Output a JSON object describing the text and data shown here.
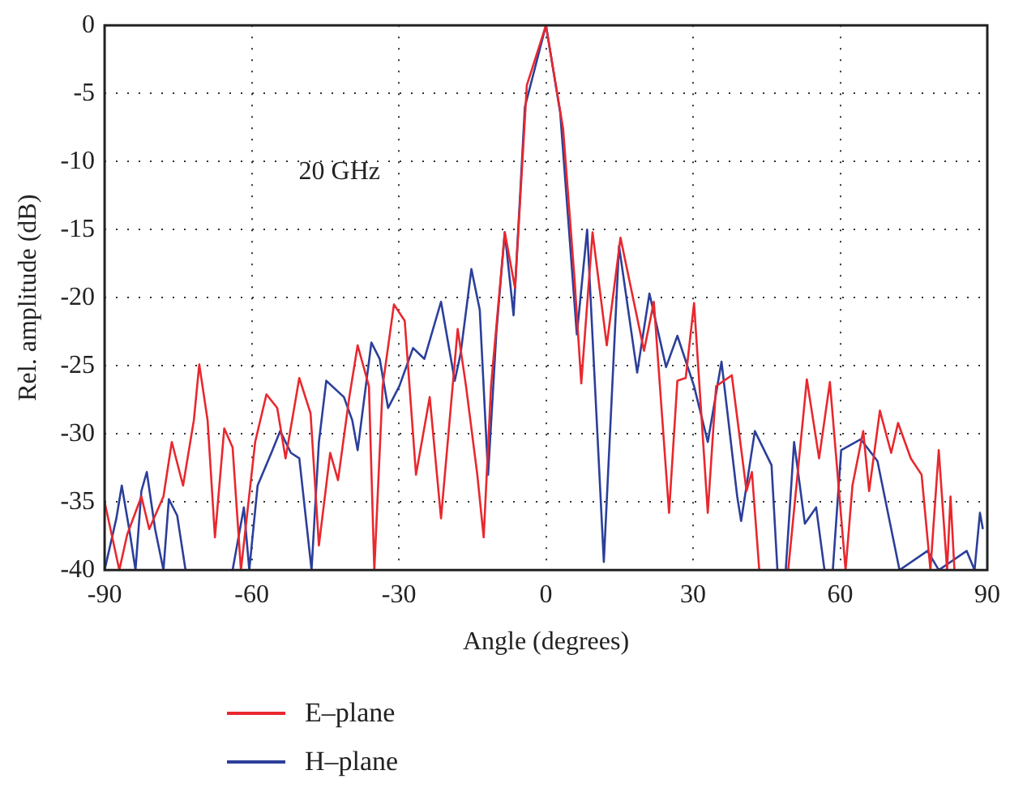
{
  "chart_data": {
    "type": "line",
    "xlabel": "Angle (degrees)",
    "ylabel": "Rel. amplitude (dB)",
    "annotations": [
      "20 GHz"
    ],
    "xlim": [
      -90,
      90
    ],
    "xticks": [
      -90,
      -60,
      -30,
      0,
      30,
      60,
      90
    ],
    "ylim": [
      -40,
      0
    ],
    "yticks": [
      -40,
      -35,
      -30,
      -25,
      -20,
      -15,
      -10,
      -5,
      0
    ],
    "grid": true,
    "legend": "bottom",
    "marker": "none",
    "line_style": "solid",
    "series": [
      {
        "name": "E–plane",
        "color": "#e8282e",
        "x": [
          -90,
          -87,
          -85.4,
          -82.5,
          -80.9,
          -78,
          -76.3,
          -74,
          -71.8,
          -70.7,
          -69,
          -67.5,
          -65.6,
          -63.9,
          -62.2,
          -59.3,
          -57,
          -54.8,
          -53.1,
          -50.3,
          -48,
          -46.3,
          -44,
          -42.4,
          -40.1,
          -38.4,
          -36.1,
          -35,
          -33.3,
          -31,
          -28.8,
          -26.5,
          -23.7,
          -21.4,
          -18,
          -16.3,
          -14,
          -12.7,
          -11.2,
          -8.4,
          -6.3,
          -3.9,
          0,
          3.5,
          5.8,
          7.2,
          9.5,
          12.4,
          15.2,
          20,
          22,
          25.1,
          26.8,
          28.5,
          30.2,
          33,
          34.7,
          37.9,
          40.9,
          42,
          43.5,
          49.4,
          53.2,
          55.7,
          57.9,
          61.1,
          62.5,
          64.7,
          65.9,
          68.1,
          70.4,
          71.8,
          74.4,
          76.6,
          78.4,
          80.1,
          81.8,
          82.5,
          83.3
        ],
        "values": [
          -35,
          -40,
          -37.4,
          -34.6,
          -37,
          -34.6,
          -30.6,
          -33.8,
          -29,
          -24.9,
          -29,
          -37.6,
          -29.6,
          -31,
          -40,
          -30.6,
          -27.1,
          -28.1,
          -31.8,
          -25.9,
          -28.5,
          -38.2,
          -31.4,
          -33.4,
          -27.3,
          -23.5,
          -26.5,
          -40,
          -26.5,
          -20.5,
          -21.7,
          -33,
          -27.3,
          -36.2,
          -22.3,
          -26.5,
          -33,
          -37.6,
          -26.5,
          -15.2,
          -19.3,
          -4.4,
          0,
          -7.6,
          -18.5,
          -26.3,
          -15.2,
          -23.5,
          -15.6,
          -23.9,
          -20.3,
          -35.8,
          -26.1,
          -25.9,
          -20.4,
          -35.8,
          -26.5,
          -25.7,
          -34.2,
          -32.8,
          -40,
          -40,
          -26,
          -31.8,
          -26.2,
          -40,
          -33.8,
          -29.8,
          -34.2,
          -28.3,
          -31.4,
          -29.2,
          -31.8,
          -33,
          -40,
          -31.2,
          -40,
          -34.6,
          -40
        ]
      },
      {
        "name": "H–plane",
        "color": "#2b3f9a",
        "x": [
          -90,
          -87.6,
          -86.5,
          -84.8,
          -83.7,
          -82.5,
          -81.4,
          -79.7,
          -78,
          -76.9,
          -75.2,
          -73.5,
          -63.9,
          -61.6,
          -60.5,
          -58.8,
          -56,
          -54.2,
          -52,
          -50.3,
          -47.8,
          -46.3,
          -44.8,
          -41.2,
          -39.5,
          -38.4,
          -35.6,
          -33.9,
          -32.2,
          -29.9,
          -27.1,
          -24.8,
          -21.4,
          -18.6,
          -17.4,
          -15.2,
          -13.5,
          -11.8,
          -10.1,
          -8.4,
          -6.6,
          -4.3,
          0,
          2.9,
          6.3,
          8.4,
          11.8,
          14.9,
          18.6,
          21.1,
          24.5,
          26.8,
          30.2,
          33,
          35.8,
          39,
          39.8,
          42.6,
          46,
          47.2,
          48.9,
          50.6,
          52.8,
          55.1,
          56.8,
          58.5,
          60.2,
          64.2,
          67.6,
          72.1,
          77.8,
          80.1,
          85.8,
          87.4,
          88.5,
          89.1
        ],
        "values": [
          -40,
          -36.2,
          -33.8,
          -37.4,
          -40,
          -34.2,
          -32.8,
          -37,
          -40,
          -34.8,
          -36,
          -40,
          -40,
          -35.4,
          -40,
          -33.8,
          -31.4,
          -29.8,
          -31.4,
          -31.8,
          -40,
          -30.6,
          -26.1,
          -27.3,
          -29,
          -31.2,
          -23.3,
          -24.5,
          -28.1,
          -26.5,
          -23.7,
          -24.5,
          -20.3,
          -26.1,
          -24.1,
          -17.9,
          -20.9,
          -33,
          -22.5,
          -15.2,
          -21.3,
          -6,
          0,
          -6.4,
          -22.7,
          -15,
          -39.4,
          -16.2,
          -25.5,
          -19.7,
          -25.1,
          -22.8,
          -26.5,
          -30.6,
          -24.7,
          -34.6,
          -36.4,
          -29.8,
          -32.3,
          -40,
          -40,
          -30.6,
          -36.6,
          -35.4,
          -40,
          -40,
          -31.2,
          -30.4,
          -32,
          -40,
          -38.6,
          -40,
          -38.6,
          -40,
          -35.8,
          -37
        ]
      }
    ]
  }
}
